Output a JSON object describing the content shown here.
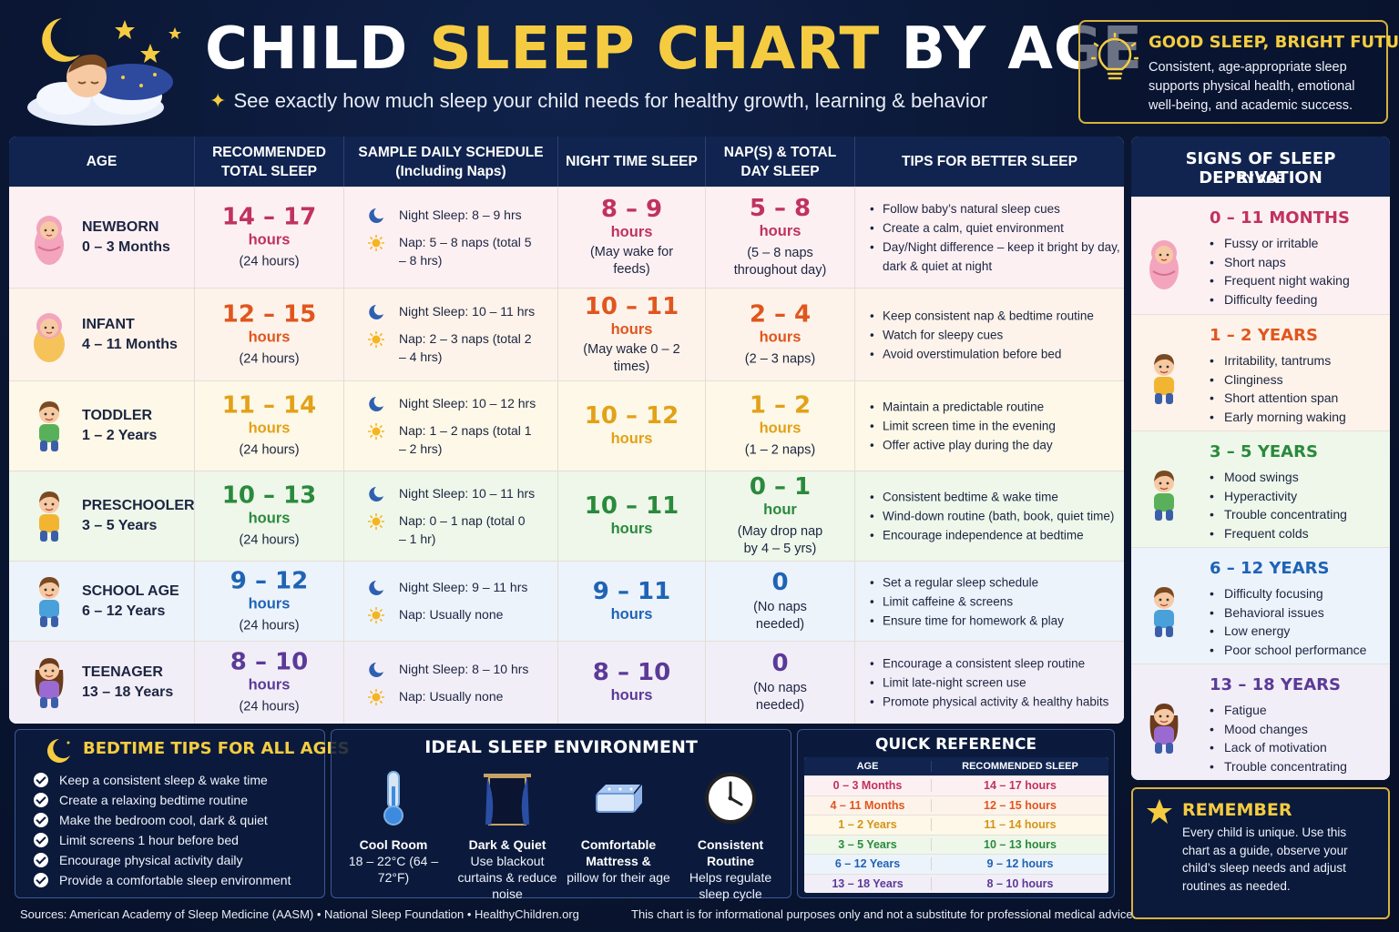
{
  "header": {
    "title_part1": "CHILD ",
    "title_highlight": "SLEEP CHART",
    "title_part2": " BY AGE",
    "subtitle": "See exactly how much sleep your child needs for healthy growth, learning & behavior"
  },
  "good_sleep": {
    "title": "GOOD SLEEP, BRIGHT FUTURE",
    "text": "Consistent, age-appropriate sleep supports physical health, emotional well-being, and academic success."
  },
  "table": {
    "headers": [
      "AGE",
      "RECOMMENDED TOTAL SLEEP",
      "SAMPLE DAILY SCHEDULE (Including Naps)",
      "NIGHT TIME SLEEP",
      "NAP(S) & TOTAL DAY SLEEP",
      "TIPS FOR BETTER SLEEP"
    ],
    "rows": [
      {
        "age_name": "NEWBORN",
        "age_range": "0 – 3 Months",
        "color": "#c0325f",
        "bg": "#fdf0f3",
        "total": "14 – 17",
        "total_unit": "hours",
        "total_note": "(24 hours)",
        "night_schedule": "Night Sleep: 8 – 9 hrs",
        "nap_schedule": "Nap: 5 – 8 naps (total 5 – 8 hrs)",
        "night": "8 – 9",
        "night_unit": "hours",
        "night_note": "(May wake for feeds)",
        "nap": "5 – 8",
        "nap_unit": "hours",
        "nap_note": "(5 – 8 naps throughout day)",
        "tips": [
          "Follow baby’s natural sleep cues",
          "Create a calm, quiet environment",
          "Day/Night difference – keep it bright by day, dark & quiet at night"
        ]
      },
      {
        "age_name": "INFANT",
        "age_range": "4 – 11 Months",
        "color": "#e0561e",
        "bg": "#fdf3ea",
        "total": "12 – 15",
        "total_unit": "hours",
        "total_note": "(24 hours)",
        "night_schedule": "Night Sleep: 10 – 11 hrs",
        "nap_schedule": "Nap: 2 – 3 naps (total 2 – 4 hrs)",
        "night": "10 – 11",
        "night_unit": "hours",
        "night_note": "(May wake 0 – 2 times)",
        "nap": "2 – 4",
        "nap_unit": "hours",
        "nap_note": "(2 – 3 naps)",
        "tips": [
          "Keep consistent nap & bedtime routine",
          "Watch for sleepy cues",
          "Avoid overstimulation before bed"
        ]
      },
      {
        "age_name": "TODDLER",
        "age_range": "1 – 2 Years",
        "color": "#e2a117",
        "bg": "#fdf8e7",
        "total": "11 – 14",
        "total_unit": "hours",
        "total_note": "(24 hours)",
        "night_schedule": "Night Sleep: 10 – 12 hrs",
        "nap_schedule": "Nap: 1 – 2 naps (total 1 – 2 hrs)",
        "night": "10 – 12",
        "night_unit": "hours",
        "night_note": "",
        "nap": "1 – 2",
        "nap_unit": "hours",
        "nap_note": "(1 – 2 naps)",
        "tips": [
          "Maintain a predictable routine",
          "Limit screen time in the evening",
          "Offer active play during the day"
        ]
      },
      {
        "age_name": "PRESCHOOLER",
        "age_range": "3 – 5 Years",
        "color": "#2a8a3c",
        "bg": "#eef7ea",
        "total": "10 – 13",
        "total_unit": "hours",
        "total_note": "(24 hours)",
        "night_schedule": "Night Sleep: 10 – 11 hrs",
        "nap_schedule": "Nap: 0 – 1 nap (total 0 – 1 hr)",
        "night": "10 – 11",
        "night_unit": "hours",
        "night_note": "",
        "nap": "0 – 1",
        "nap_unit": "hour",
        "nap_note": "(May drop nap by 4 – 5 yrs)",
        "tips": [
          "Consistent bedtime & wake time",
          "Wind-down routine (bath, book, quiet time)",
          "Encourage independence at bedtime"
        ]
      },
      {
        "age_name": "SCHOOL AGE",
        "age_range": "6 – 12 Years",
        "color": "#1f63b5",
        "bg": "#ecf3fb",
        "total": "9 – 12",
        "total_unit": "hours",
        "total_note": "(24 hours)",
        "night_schedule": "Night Sleep: 9 – 11 hrs",
        "nap_schedule": "Nap: Usually none",
        "night": "9 – 11",
        "night_unit": "hours",
        "night_note": "",
        "nap": "0",
        "nap_unit": "",
        "nap_note": "(No naps needed)",
        "tips": [
          "Set a regular sleep schedule",
          "Limit caffeine & screens",
          "Ensure time for homework & play"
        ]
      },
      {
        "age_name": "TEENAGER",
        "age_range": "13 – 18 Years",
        "color": "#5b3a97",
        "bg": "#f2eef8",
        "total": "8 – 10",
        "total_unit": "hours",
        "total_note": "(24 hours)",
        "night_schedule": "Night Sleep: 8 – 10 hrs",
        "nap_schedule": "Nap: Usually none",
        "night": "8 – 10",
        "night_unit": "hours",
        "night_note": "",
        "nap": "0",
        "nap_unit": "",
        "nap_note": "(No naps needed)",
        "tips": [
          "Encourage a consistent sleep routine",
          "Limit late-night screen use",
          "Promote physical activity & healthy habits"
        ]
      }
    ]
  },
  "signs": {
    "title": "SIGNS OF SLEEP DEPRIVATION",
    "subtitle": "BY AGE",
    "sections": [
      {
        "title": "0 – 11 MONTHS",
        "color": "#c0325f",
        "bg": "#fdf0f3",
        "items": [
          "Fussy or irritable",
          "Short naps",
          "Frequent night waking",
          "Difficulty feeding"
        ]
      },
      {
        "title": "1 – 2 YEARS",
        "color": "#e0561e",
        "bg": "#fdf3ea",
        "items": [
          "Irritability, tantrums",
          "Clinginess",
          "Short attention span",
          "Early morning waking"
        ]
      },
      {
        "title": "3 – 5 YEARS",
        "color": "#2a8a3c",
        "bg": "#eef7ea",
        "items": [
          "Mood swings",
          "Hyperactivity",
          "Trouble concentrating",
          "Frequent colds"
        ]
      },
      {
        "title": "6 – 12 YEARS",
        "color": "#1f63b5",
        "bg": "#ecf3fb",
        "items": [
          "Difficulty focusing",
          "Behavioral issues",
          "Low energy",
          "Poor school performance"
        ]
      },
      {
        "title": "13 – 18 YEARS",
        "color": "#5b3a97",
        "bg": "#f2eef8",
        "items": [
          "Fatigue",
          "Mood changes",
          "Lack of motivation",
          "Trouble concentrating"
        ]
      }
    ]
  },
  "bedtime": {
    "title": "BEDTIME TIPS FOR ALL AGES",
    "items": [
      "Keep a consistent sleep & wake time",
      "Create a relaxing bedtime routine",
      "Make the bedroom cool, dark & quiet",
      "Limit screens 1 hour before bed",
      "Encourage physical activity daily",
      "Provide a comfortable sleep environment"
    ]
  },
  "environment": {
    "title": "IDEAL SLEEP ENVIRONMENT",
    "items": [
      {
        "name": "Cool Room",
        "desc": "18 – 22°C (64 – 72°F)",
        "icon": "thermometer-icon"
      },
      {
        "name": "Dark & Quiet",
        "desc": "Use blackout curtains & reduce noise",
        "icon": "curtains-icon"
      },
      {
        "name": "Comfortable Mattress &",
        "desc": "pillow for their age",
        "icon": "mattress-icon"
      },
      {
        "name": "Consistent Routine",
        "desc": "Helps regulate sleep cycle",
        "icon": "clock-icon"
      }
    ]
  },
  "quick_ref": {
    "title": "QUICK REFERENCE",
    "col_age": "AGE",
    "col_sleep": "RECOMMENDED SLEEP",
    "rows": [
      {
        "age": "0 – 3 Months",
        "sleep": "14 – 17 hours",
        "color": "#c0325f",
        "bg": "#fdf0f3"
      },
      {
        "age": "4 – 11 Months",
        "sleep": "12 – 15 hours",
        "color": "#e0561e",
        "bg": "#fdf3ea"
      },
      {
        "age": "1 – 2 Years",
        "sleep": "11 – 14 hours",
        "color": "#d4941a",
        "bg": "#fdf8e7"
      },
      {
        "age": "3 – 5 Years",
        "sleep": "10 – 13 hours",
        "color": "#2a8a3c",
        "bg": "#eef7ea"
      },
      {
        "age": "6 – 12 Years",
        "sleep": "9 – 12 hours",
        "color": "#1f63b5",
        "bg": "#ecf3fb"
      },
      {
        "age": "13 – 18 Years",
        "sleep": "8 – 10 hours",
        "color": "#5b3a97",
        "bg": "#f2eef8"
      }
    ]
  },
  "remember": {
    "title": "REMEMBER",
    "text": "Every child is unique. Use this chart as a guide, observe your child’s sleep needs and adjust routines as needed."
  },
  "footer": {
    "sources": "Sources: American Academy of Sleep Medicine (AASM) • National Sleep Foundation • HealthyChildren.org",
    "disclaimer": "This chart is for informational purposes only and not a substitute for professional medical advice."
  }
}
